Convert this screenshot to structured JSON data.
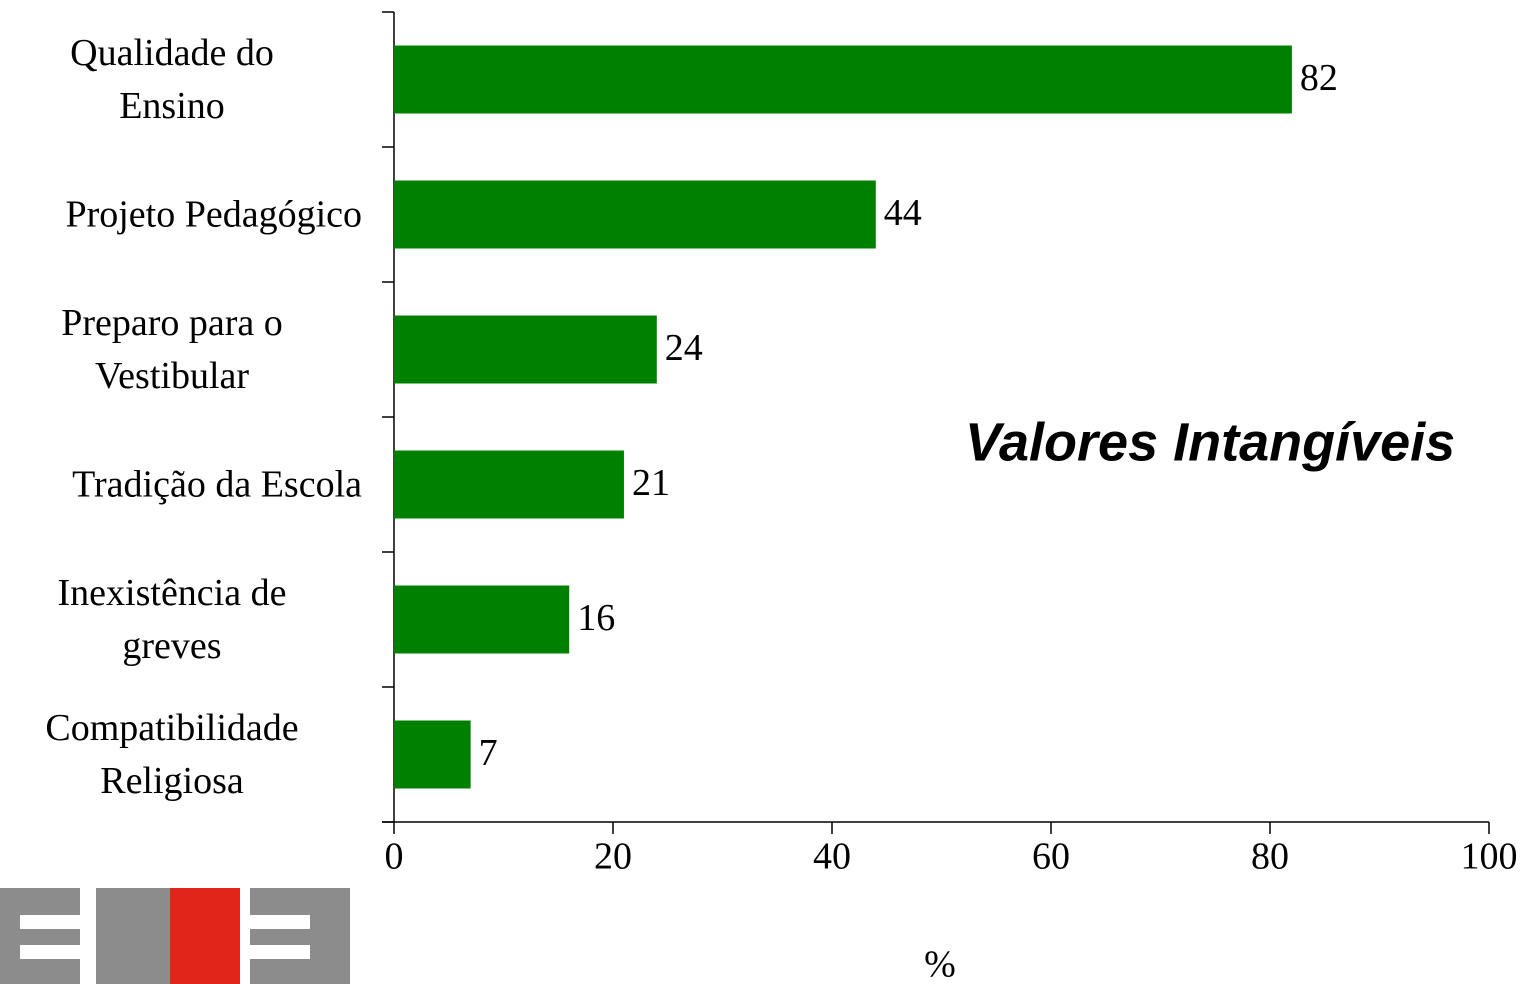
{
  "chart_data": {
    "type": "bar",
    "orientation": "horizontal",
    "categories": [
      "Qualidade do\nEnsino",
      "Projeto Pedagógico",
      "Preparo para o\nVestibular",
      "Tradição da Escola",
      "Inexistência de\ngreves",
      "Compatibilidade\nReligiosa"
    ],
    "values": [
      82,
      44,
      24,
      21,
      16,
      7
    ],
    "color": "#008000",
    "xlim": [
      0,
      100
    ],
    "xticks": [
      0,
      20,
      40,
      60,
      80,
      100
    ],
    "xlabel": "%",
    "annotation": "Valores  Intangíveis"
  }
}
